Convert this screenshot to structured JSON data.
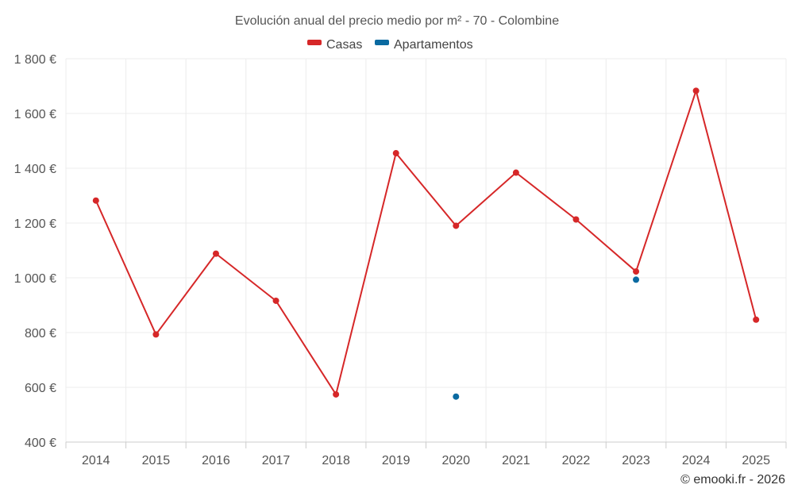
{
  "chart_data": {
    "type": "line",
    "title": "Evolución anual del precio medio por m² - 70 - Colombine",
    "categories": [
      "2014",
      "2015",
      "2016",
      "2017",
      "2018",
      "2019",
      "2020",
      "2021",
      "2022",
      "2023",
      "2024",
      "2025"
    ],
    "series": [
      {
        "name": "Casas",
        "color": "#d62728",
        "values": [
          1282,
          793,
          1088,
          916,
          574,
          1455,
          1190,
          1384,
          1213,
          1023,
          1683,
          847
        ]
      },
      {
        "name": "Apartamentos",
        "color": "#0a6aa1",
        "values": [
          null,
          null,
          null,
          null,
          null,
          null,
          566,
          null,
          null,
          993,
          null,
          null
        ]
      }
    ],
    "ylim": [
      400,
      1800
    ],
    "yticks": [
      400,
      600,
      800,
      1000,
      1200,
      1400,
      1600,
      1800
    ],
    "ytick_labels": [
      "400 €",
      "600 €",
      "800 €",
      "1 000 €",
      "1 200 €",
      "1 400 €",
      "1 600 €",
      "1 800 €"
    ],
    "xlabel": "",
    "ylabel": "",
    "grid": true,
    "legend": "top-center"
  },
  "credit": "© emooki.fr - 2026"
}
